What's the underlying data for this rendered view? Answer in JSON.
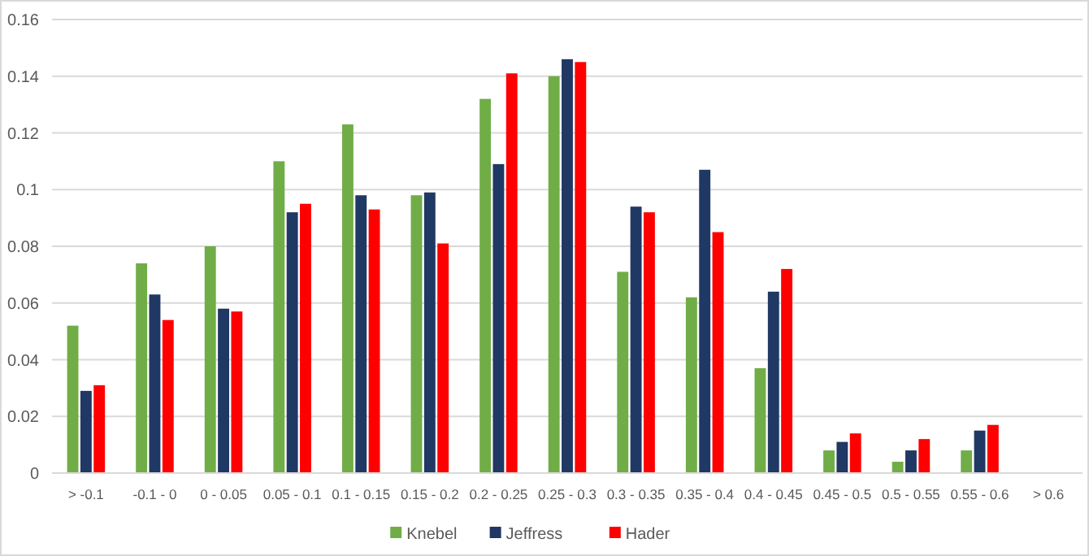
{
  "chart_data": {
    "type": "bar",
    "categories": [
      "> -0.1",
      "-0.1 - 0",
      "0 - 0.05",
      "0.05 - 0.1",
      "0.1 - 0.15",
      "0.15 - 0.2",
      "0.2 - 0.25",
      "0.25 - 0.3",
      "0.3 - 0.35",
      "0.35 - 0.4",
      "0.4 - 0.45",
      "0.45 - 0.5",
      "0.5 - 0.55",
      "0.55 - 0.6",
      "> 0.6"
    ],
    "series": [
      {
        "name": "Knebel",
        "color": "#70ad47",
        "values": [
          0.052,
          0.074,
          0.08,
          0.11,
          0.123,
          0.098,
          0.132,
          0.14,
          0.071,
          0.062,
          0.037,
          0.008,
          0.004,
          0.008,
          0
        ]
      },
      {
        "name": "Jeffress",
        "color": "#203864",
        "values": [
          0.029,
          0.063,
          0.058,
          0.092,
          0.098,
          0.099,
          0.109,
          0.146,
          0.094,
          0.107,
          0.064,
          0.011,
          0.008,
          0.015,
          0
        ]
      },
      {
        "name": "Hader",
        "color": "#ff0000",
        "values": [
          0.031,
          0.054,
          0.057,
          0.095,
          0.093,
          0.081,
          0.141,
          0.145,
          0.092,
          0.085,
          0.072,
          0.014,
          0.012,
          0.017,
          0
        ]
      }
    ],
    "ylim": [
      0,
      0.16
    ],
    "yticks": [
      0,
      0.02,
      0.04,
      0.06,
      0.08,
      0.1,
      0.12,
      0.14,
      0.16
    ],
    "grid": "y",
    "legend": "bottom"
  }
}
